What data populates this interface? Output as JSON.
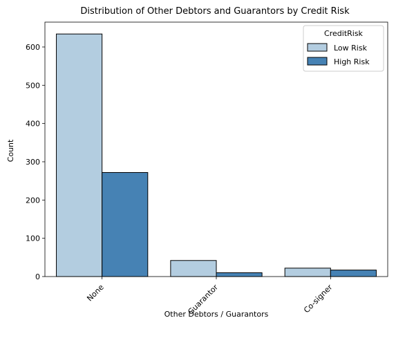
{
  "chart_data": {
    "type": "bar",
    "title": "Distribution of Other Debtors and Guarantors by Credit Risk",
    "xlabel": "Other Debtors / Guarantors",
    "ylabel": "Count",
    "categories": [
      "None",
      "Guarantor",
      "Co-signer"
    ],
    "series": [
      {
        "name": "Low Risk",
        "values": [
          634,
          42,
          22
        ],
        "color": "#b3cde0"
      },
      {
        "name": "High Risk",
        "values": [
          272,
          10,
          17
        ],
        "color": "#4682b4"
      }
    ],
    "ylim": [
      0,
      665
    ],
    "yticks": [
      0,
      100,
      200,
      300,
      400,
      500,
      600
    ],
    "legend": {
      "title": "CreditRisk",
      "position": "top-right"
    },
    "grid": false
  }
}
